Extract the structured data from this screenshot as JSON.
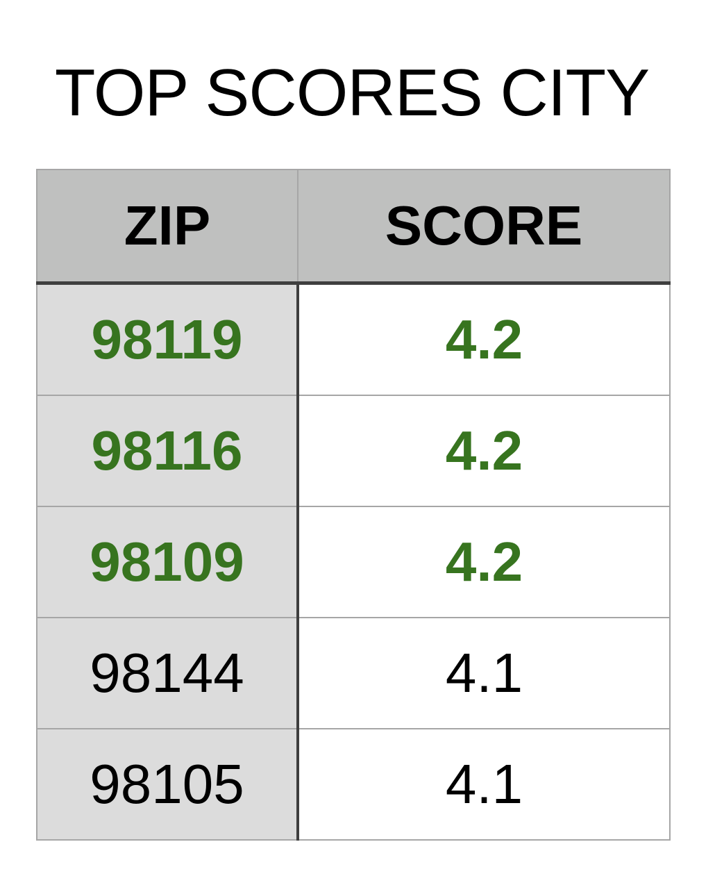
{
  "title": "TOP SCORES CITY",
  "colors": {
    "header_bg": "#bfc0bf",
    "zip_col_bg": "#dcdcdc",
    "highlight_text": "#37741f",
    "normal_text": "#000000",
    "grid": "#a6a6a6",
    "separator": "#3f3f3f"
  },
  "chart_data": {
    "type": "table",
    "title": "TOP SCORES CITY",
    "columns": [
      "ZIP",
      "SCORE"
    ],
    "rows": [
      {
        "zip": "98119",
        "score": "4.2",
        "highlight": true
      },
      {
        "zip": "98116",
        "score": "4.2",
        "highlight": true
      },
      {
        "zip": "98109",
        "score": "4.2",
        "highlight": true
      },
      {
        "zip": "98144",
        "score": "4.1",
        "highlight": false
      },
      {
        "zip": "98105",
        "score": "4.1",
        "highlight": false
      }
    ]
  }
}
